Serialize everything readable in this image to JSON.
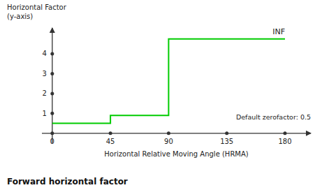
{
  "chart_data": {
    "type": "line",
    "title": "Forward horizontal factor",
    "x_label": "Horizontal Relative Moving Angle (HRMA)",
    "y_label": [
      "Horizontal Factor",
      "(y-axis)"
    ],
    "annotations": [
      "INF",
      "Default zerofactor: 0.5"
    ],
    "series": [
      {
        "color": "#00cc00",
        "x": [
          0,
          45,
          45,
          90,
          90,
          180
        ],
        "values": [
          0.5,
          0.5,
          0.9,
          0.9,
          4.75,
          4.75
        ]
      }
    ],
    "xlim": [
      -8,
      200
    ],
    "ylim": [
      -0.5,
      5.3
    ],
    "xticks": [
      0,
      45,
      90,
      135,
      180
    ],
    "yticks": [
      1,
      2,
      3,
      4
    ],
    "grid": false
  }
}
